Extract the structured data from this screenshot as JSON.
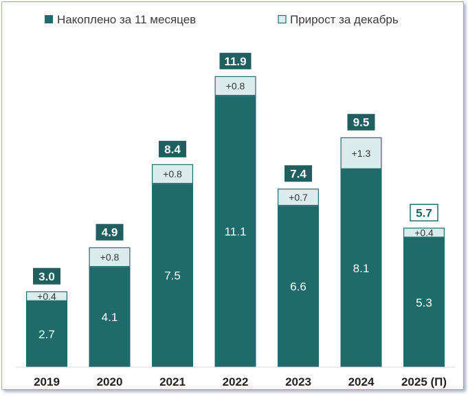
{
  "chart_data": {
    "type": "bar",
    "stacked": true,
    "categories": [
      "2019",
      "2020",
      "2021",
      "2022",
      "2023",
      "2024",
      "2025 (П)"
    ],
    "series": [
      {
        "name": "Накоплено за 11 месяцев",
        "values": [
          2.7,
          4.1,
          7.5,
          11.1,
          6.6,
          8.1,
          5.3
        ],
        "labels": [
          "2.7",
          "4.1",
          "7.5",
          "11.1",
          "6.6",
          "8.1",
          "5.3"
        ],
        "color": "#1f6b6b"
      },
      {
        "name": "Прирост за декабрь",
        "values": [
          0.4,
          0.8,
          0.8,
          0.8,
          0.7,
          1.3,
          0.4
        ],
        "labels": [
          "+0.4",
          "+0.8",
          "+0.8",
          "+0.8",
          "+0.7",
          "+1.3",
          "+0.4"
        ],
        "color": "#dcecec",
        "border_color": "#1f6b6b"
      }
    ],
    "totals": [
      3.0,
      4.9,
      8.4,
      11.9,
      7.4,
      9.5,
      5.7
    ],
    "total_labels": [
      "3.0",
      "4.9",
      "8.4",
      "11.9",
      "7.4",
      "9.5",
      "5.7"
    ],
    "total_label_style": [
      "filled",
      "filled",
      "filled",
      "filled",
      "filled",
      "filled",
      "outlined"
    ],
    "ylim": [
      0,
      12.4
    ],
    "grid": false,
    "legend_position": "top"
  }
}
